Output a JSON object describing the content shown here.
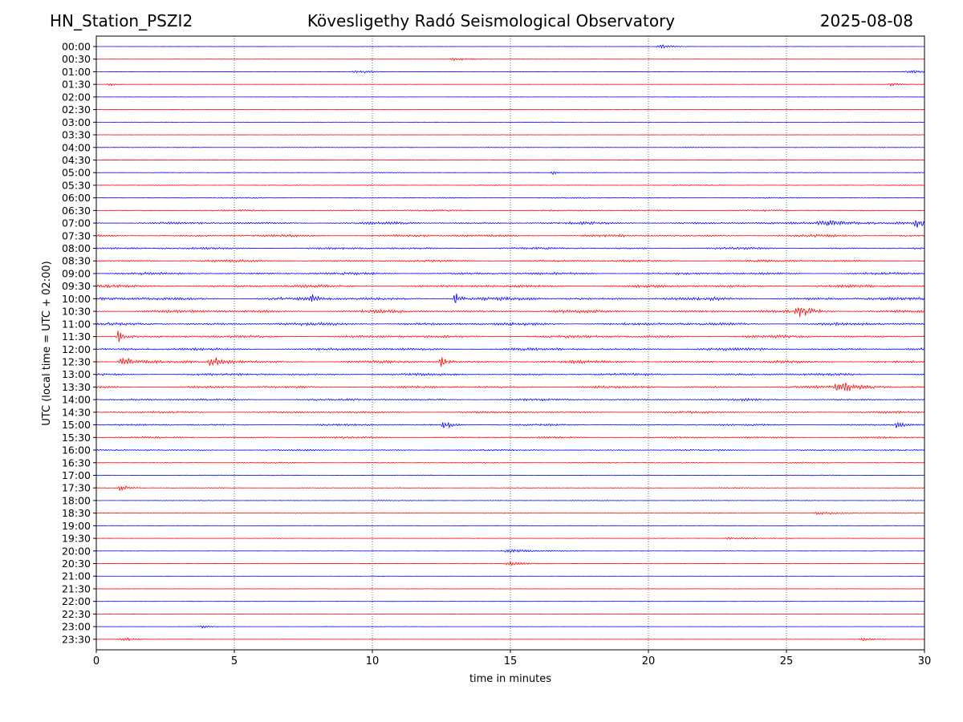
{
  "header": {
    "station": "HN_Station_PSZI2",
    "observatory": "Kövesligethy Radó Seismological Observatory",
    "date": "2025-08-08"
  },
  "chart_data": {
    "type": "line",
    "title": "Kövesligethy Radó Seismological Observatory",
    "xlabel": "time in minutes",
    "ylabel": "UTC (local time = UTC + 02:00)",
    "xlim": [
      0,
      30
    ],
    "x_ticks": [
      0,
      5,
      10,
      15,
      20,
      25,
      30
    ],
    "grid": "vertical dotted at x ticks",
    "series_colors": [
      "#0000ff",
      "#ff0000"
    ],
    "rows": [
      "00:00",
      "00:30",
      "01:00",
      "01:30",
      "02:00",
      "02:30",
      "03:00",
      "03:30",
      "04:00",
      "04:30",
      "05:00",
      "05:30",
      "06:00",
      "06:30",
      "07:00",
      "07:30",
      "08:00",
      "08:30",
      "09:00",
      "09:30",
      "10:00",
      "10:30",
      "11:00",
      "11:30",
      "12:00",
      "12:30",
      "13:00",
      "13:30",
      "14:00",
      "14:30",
      "15:00",
      "15:30",
      "16:00",
      "16:30",
      "17:00",
      "17:30",
      "18:00",
      "18:30",
      "19:00",
      "19:30",
      "20:00",
      "20:30",
      "21:00",
      "21:30",
      "22:00",
      "22:30",
      "23:00",
      "23:30"
    ],
    "noise_level": [
      0.3,
      0.3,
      0.3,
      0.3,
      0.3,
      0.3,
      0.3,
      0.3,
      0.4,
      0.4,
      0.5,
      0.6,
      0.8,
      1.2,
      1.8,
      1.8,
      1.6,
      1.6,
      1.8,
      2.0,
      2.4,
      2.2,
      2.2,
      2.0,
      2.0,
      2.0,
      1.8,
      1.8,
      1.6,
      1.5,
      1.4,
      1.3,
      1.1,
      0.9,
      0.6,
      0.6,
      0.5,
      0.5,
      0.4,
      0.4,
      0.4,
      0.4,
      0.3,
      0.3,
      0.3,
      0.3,
      0.3,
      0.3
    ],
    "events": [
      {
        "row": "00:00",
        "minute": 20.5,
        "amp": 2.5,
        "dur": 1.0
      },
      {
        "row": "00:30",
        "minute": 13.0,
        "amp": 2.0,
        "dur": 1.2
      },
      {
        "row": "01:00",
        "minute": 9.5,
        "amp": 2.0,
        "dur": 1.2
      },
      {
        "row": "01:00",
        "minute": 29.5,
        "amp": 2.5,
        "dur": 1.0
      },
      {
        "row": "01:30",
        "minute": 0.5,
        "amp": 2.0,
        "dur": 0.6
      },
      {
        "row": "01:30",
        "minute": 28.8,
        "amp": 2.0,
        "dur": 0.8
      },
      {
        "row": "05:00",
        "minute": 16.5,
        "amp": 3.5,
        "dur": 0.3
      },
      {
        "row": "07:00",
        "minute": 26.5,
        "amp": 5.0,
        "dur": 2.0
      },
      {
        "row": "07:00",
        "minute": 29.7,
        "amp": 6.0,
        "dur": 0.6
      },
      {
        "row": "10:00",
        "minute": 7.8,
        "amp": 9.0,
        "dur": 0.3
      },
      {
        "row": "10:00",
        "minute": 13.0,
        "amp": 8.0,
        "dur": 0.4
      },
      {
        "row": "10:30",
        "minute": 25.5,
        "amp": 6.0,
        "dur": 1.0
      },
      {
        "row": "11:30",
        "minute": 0.8,
        "amp": 9.0,
        "dur": 0.5
      },
      {
        "row": "12:30",
        "minute": 1.0,
        "amp": 7.0,
        "dur": 1.0
      },
      {
        "row": "12:30",
        "minute": 4.2,
        "amp": 7.0,
        "dur": 0.8
      },
      {
        "row": "12:30",
        "minute": 12.5,
        "amp": 7.0,
        "dur": 0.4
      },
      {
        "row": "13:30",
        "minute": 27.0,
        "amp": 7.0,
        "dur": 1.5
      },
      {
        "row": "15:00",
        "minute": 12.6,
        "amp": 6.0,
        "dur": 0.6
      },
      {
        "row": "15:00",
        "minute": 29.0,
        "amp": 5.0,
        "dur": 0.5
      },
      {
        "row": "17:30",
        "minute": 0.9,
        "amp": 4.0,
        "dur": 0.6
      },
      {
        "row": "18:30",
        "minute": 26.2,
        "amp": 2.0,
        "dur": 1.4
      },
      {
        "row": "19:30",
        "minute": 23.0,
        "amp": 2.0,
        "dur": 1.5
      },
      {
        "row": "20:00",
        "minute": 15.0,
        "amp": 2.0,
        "dur": 2.0
      },
      {
        "row": "20:30",
        "minute": 15.0,
        "amp": 2.5,
        "dur": 1.5
      },
      {
        "row": "23:00",
        "minute": 3.8,
        "amp": 2.5,
        "dur": 0.6
      },
      {
        "row": "23:30",
        "minute": 1.0,
        "amp": 2.5,
        "dur": 1.2
      },
      {
        "row": "23:30",
        "minute": 27.8,
        "amp": 2.0,
        "dur": 1.2
      }
    ]
  }
}
